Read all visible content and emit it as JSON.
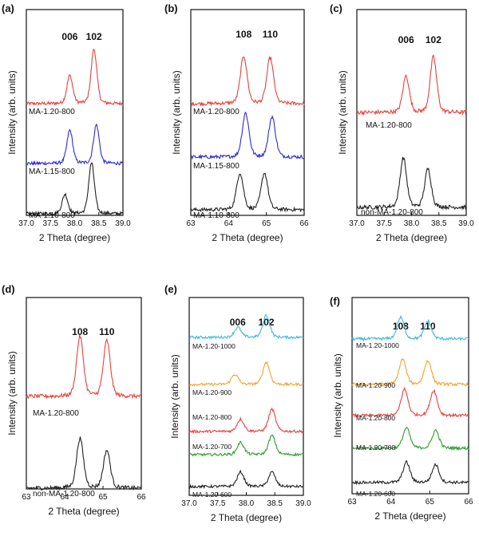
{
  "chart_data": [
    {
      "type": "line",
      "panel_label": "(a)",
      "xlabel": "2 Theta (degree)",
      "ylabel": "Intensity (arb. units)",
      "xlim": [
        37.0,
        39.0
      ],
      "xticks": [
        "37.0",
        "37.5",
        "38.0",
        "38.5",
        "39.0"
      ],
      "peak_labels": [
        {
          "text": "006",
          "x": 37.9
        },
        {
          "text": "102",
          "x": 38.4
        }
      ],
      "series": [
        {
          "name": "MA-1.20-800",
          "color": "#e8413c",
          "peaks": [
            {
              "x": 37.9,
              "h": 0.8
            },
            {
              "x": 38.4,
              "h": 1.55
            }
          ]
        },
        {
          "name": "MA-1.15-800",
          "color": "#2b2bd6",
          "peaks": [
            {
              "x": 37.9,
              "h": 0.95
            },
            {
              "x": 38.45,
              "h": 1.1
            }
          ]
        },
        {
          "name": "MA-1.10-800",
          "color": "#222222",
          "peaks": [
            {
              "x": 37.8,
              "h": 0.55
            },
            {
              "x": 38.35,
              "h": 1.45
            }
          ]
        }
      ]
    },
    {
      "type": "line",
      "panel_label": "(b)",
      "xlabel": "2 Theta (degree)",
      "ylabel": "Intensity (arb. units)",
      "xlim": [
        63,
        66
      ],
      "xticks": [
        "63",
        "64",
        "65",
        "66"
      ],
      "peak_labels": [
        {
          "text": "108",
          "x": 64.4
        },
        {
          "text": "110",
          "x": 65.1
        }
      ],
      "series": [
        {
          "name": "MA-1.20-800",
          "color": "#e8413c",
          "peaks": [
            {
              "x": 64.4,
              "h": 1.3
            },
            {
              "x": 65.1,
              "h": 1.25
            }
          ]
        },
        {
          "name": "MA-1.15-800",
          "color": "#2b2bd6",
          "peaks": [
            {
              "x": 64.45,
              "h": 1.2
            },
            {
              "x": 65.15,
              "h": 1.1
            }
          ]
        },
        {
          "name": "MA-1.10-800",
          "color": "#222222",
          "peaks": [
            {
              "x": 64.3,
              "h": 1.0
            },
            {
              "x": 64.95,
              "h": 1.0
            }
          ]
        }
      ]
    },
    {
      "type": "line",
      "panel_label": "(c)",
      "xlabel": "2 Theta (degree)",
      "ylabel": "Intensity (arb. units)",
      "xlim": [
        37.0,
        39.0
      ],
      "xticks": [
        "37.0",
        "37.5",
        "38.0",
        "38.5",
        "39.0"
      ],
      "peak_labels": [
        {
          "text": "006",
          "x": 37.9
        },
        {
          "text": "102",
          "x": 38.4
        }
      ],
      "series": [
        {
          "name": "MA-1.20-800",
          "color": "#e8413c",
          "peaks": [
            {
              "x": 37.9,
              "h": 0.95
            },
            {
              "x": 38.4,
              "h": 1.45
            }
          ]
        },
        {
          "name": "non-MA-1.20-800",
          "color": "#222222",
          "peaks": [
            {
              "x": 37.85,
              "h": 1.3
            },
            {
              "x": 38.3,
              "h": 1.0
            }
          ]
        }
      ]
    },
    {
      "type": "line",
      "panel_label": "(d)",
      "xlabel": "2 Theta (degree)",
      "ylabel": "Intensity (arb. units)",
      "xlim": [
        63,
        66
      ],
      "xticks": [
        "63",
        "64",
        "65",
        "66"
      ],
      "peak_labels": [
        {
          "text": "108",
          "x": 64.4
        },
        {
          "text": "110",
          "x": 65.1
        }
      ],
      "series": [
        {
          "name": "MA-1.20-800",
          "color": "#e8413c",
          "peaks": [
            {
              "x": 64.4,
              "h": 1.5
            },
            {
              "x": 65.1,
              "h": 1.4
            }
          ]
        },
        {
          "name": "non-MA-1.20-800",
          "color": "#222222",
          "peaks": [
            {
              "x": 64.4,
              "h": 1.25
            },
            {
              "x": 65.1,
              "h": 0.95
            }
          ]
        }
      ]
    },
    {
      "type": "line",
      "panel_label": "(e)",
      "xlabel": "2 Theta (degree)",
      "ylabel": "Intensity (arb. units)",
      "xlim": [
        37.0,
        39.0
      ],
      "xticks": [
        "37.0",
        "37.5",
        "38.0",
        "38.5",
        "39.0"
      ],
      "peak_labels": [
        {
          "text": "006",
          "x": 37.85
        },
        {
          "text": "102",
          "x": 38.35
        }
      ],
      "series": [
        {
          "name": "MA-1.20-1000",
          "color": "#3bb8e0",
          "peaks": [
            {
              "x": 37.85,
              "h": 0.45
            },
            {
              "x": 38.35,
              "h": 1.0
            }
          ]
        },
        {
          "name": "MA-1.20-900",
          "color": "#f2a22d",
          "peaks": [
            {
              "x": 37.8,
              "h": 0.45
            },
            {
              "x": 38.35,
              "h": 1.0
            }
          ]
        },
        {
          "name": "MA-1.20-800",
          "color": "#e8413c",
          "peaks": [
            {
              "x": 37.9,
              "h": 0.55
            },
            {
              "x": 38.45,
              "h": 1.0
            }
          ]
        },
        {
          "name": "MA-1.20-700",
          "color": "#2f9a2f",
          "peaks": [
            {
              "x": 37.9,
              "h": 0.55
            },
            {
              "x": 38.45,
              "h": 0.85
            }
          ]
        },
        {
          "name": "MA-1.20-600",
          "color": "#222222",
          "peaks": [
            {
              "x": 37.9,
              "h": 0.65
            },
            {
              "x": 38.45,
              "h": 0.65
            }
          ]
        }
      ]
    },
    {
      "type": "line",
      "panel_label": "(f)",
      "xlabel": "2 Theta (degree)",
      "ylabel": "Intensity (arb. units)",
      "xlim": [
        63,
        66
      ],
      "xticks": [
        "63",
        "64",
        "65",
        "66"
      ],
      "peak_labels": [
        {
          "text": "108",
          "x": 64.25
        },
        {
          "text": "110",
          "x": 64.95
        }
      ],
      "series": [
        {
          "name": "MA-1.20-1000",
          "color": "#3bb8e0",
          "peaks": [
            {
              "x": 64.25,
              "h": 0.9
            },
            {
              "x": 64.95,
              "h": 0.75
            }
          ]
        },
        {
          "name": "MA-1.20-900",
          "color": "#f2a22d",
          "peaks": [
            {
              "x": 64.3,
              "h": 1.05
            },
            {
              "x": 64.95,
              "h": 1.0
            }
          ]
        },
        {
          "name": "MA-1.20-800",
          "color": "#e8413c",
          "peaks": [
            {
              "x": 64.35,
              "h": 1.1
            },
            {
              "x": 65.1,
              "h": 1.05
            }
          ]
        },
        {
          "name": "MA-1.20-700",
          "color": "#2f9a2f",
          "peaks": [
            {
              "x": 64.4,
              "h": 0.85
            },
            {
              "x": 65.15,
              "h": 0.75
            }
          ]
        },
        {
          "name": "MA-1.20-600",
          "color": "#222222",
          "peaks": [
            {
              "x": 64.4,
              "h": 0.85
            },
            {
              "x": 65.15,
              "h": 0.75
            }
          ]
        }
      ]
    }
  ]
}
